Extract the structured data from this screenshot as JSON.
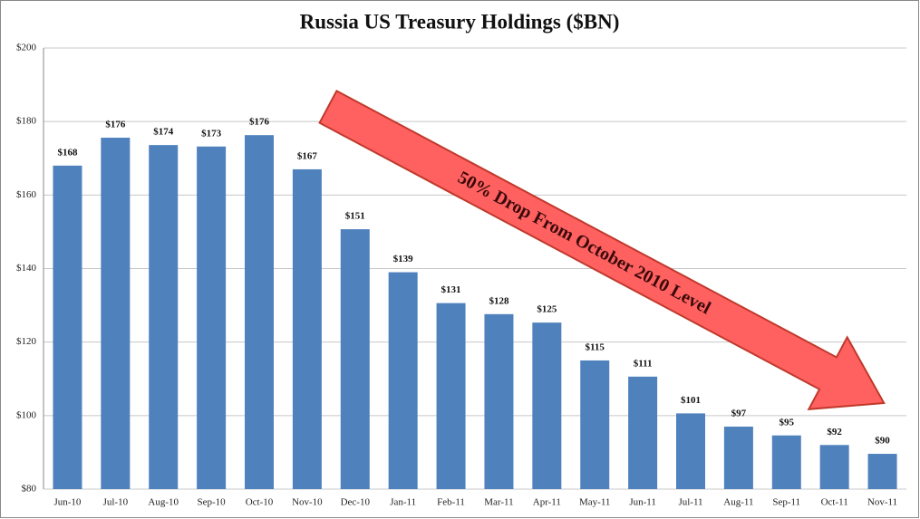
{
  "chart_data": {
    "type": "bar",
    "title": "Russia US Treasury Holdings ($BN)",
    "categories": [
      "Jun-10",
      "Jul-10",
      "Aug-10",
      "Sep-10",
      "Oct-10",
      "Nov-10",
      "Dec-10",
      "Jan-11",
      "Feb-11",
      "Mar-11",
      "Apr-11",
      "May-11",
      "Jun-11",
      "Jul-11",
      "Aug-11",
      "Sep-11",
      "Oct-11",
      "Nov-11"
    ],
    "values": [
      168,
      175.6,
      173.6,
      173.2,
      176.3,
      167,
      150.7,
      139,
      130.6,
      127.6,
      125.3,
      115,
      110.6,
      100.6,
      97,
      94.6,
      92,
      89.6
    ],
    "value_labels": [
      "$168",
      "$176",
      "$174",
      "$173",
      "$176",
      "$167",
      "$151",
      "$139",
      "$131",
      "$128",
      "$125",
      "$115",
      "$111",
      "$101",
      "$97",
      "$95",
      "$92",
      "$90"
    ],
    "color": "#4f81bd",
    "ylim": [
      80,
      200
    ],
    "yticks": [
      {
        "value": 80,
        "label": "$80"
      },
      {
        "value": 100,
        "label": "$100"
      },
      {
        "value": 120,
        "label": "$120"
      },
      {
        "value": 140,
        "label": "$140"
      },
      {
        "value": 160,
        "label": "$160"
      },
      {
        "value": 180,
        "label": "$180"
      },
      {
        "value": 200,
        "label": "$200"
      }
    ],
    "grid": true,
    "annotation": "50% Drop From October 2010 Level"
  }
}
